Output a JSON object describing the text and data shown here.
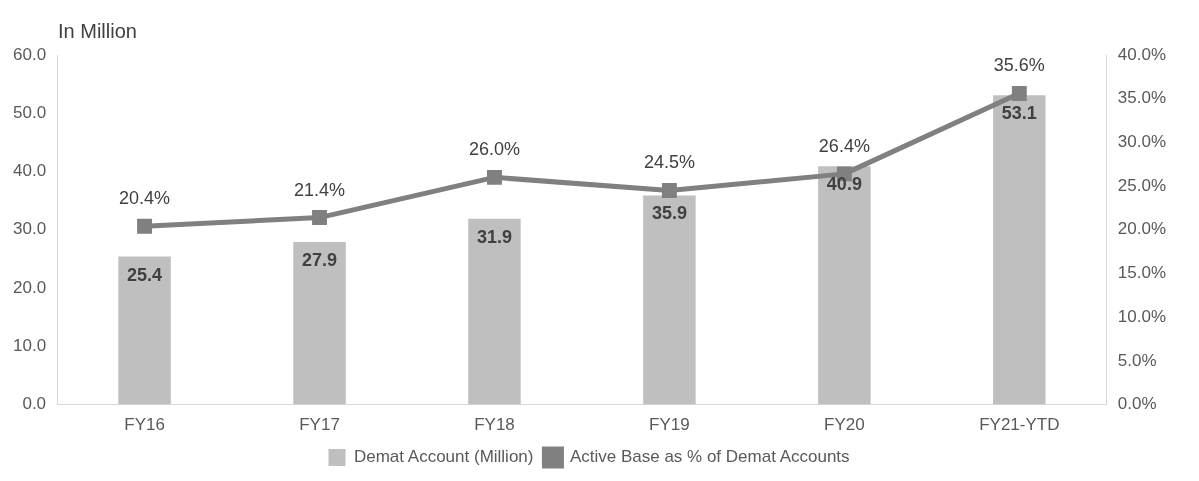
{
  "chart_data": {
    "type": "bar",
    "ylabel": "In Million",
    "categories": [
      "FY16",
      "FY17",
      "FY18",
      "FY19",
      "FY20",
      "FY21-YTD"
    ],
    "series": [
      {
        "name": "Demat Account (Million)",
        "color": "#bfbfbf",
        "values": [
          25.4,
          27.9,
          31.9,
          35.9,
          40.9,
          53.1
        ],
        "value_labels": [
          "25.4",
          "27.9",
          "31.9",
          "35.9",
          "40.9",
          "53.1"
        ]
      },
      {
        "name": "Active Base as % of Demat Accounts",
        "type": "line",
        "axis": "y2",
        "color": "#808080",
        "marker": "square",
        "values": [
          20.4,
          21.4,
          26.0,
          24.5,
          26.4,
          35.6
        ],
        "value_labels": [
          "20.4%",
          "21.4%",
          "26.0%",
          "24.5%",
          "26.4%",
          "35.6%"
        ]
      }
    ],
    "ylim": [
      0,
      60
    ],
    "yticks": [
      {
        "value": 0,
        "label": "0.0"
      },
      {
        "value": 10,
        "label": "10.0"
      },
      {
        "value": 20,
        "label": "20.0"
      },
      {
        "value": 30,
        "label": "30.0"
      },
      {
        "value": 40,
        "label": "40.0"
      },
      {
        "value": 50,
        "label": "50.0"
      },
      {
        "value": 60,
        "label": "60.0"
      }
    ],
    "y2lim": [
      0,
      40
    ],
    "y2ticks": [
      {
        "value": 0,
        "label": "0.0%"
      },
      {
        "value": 5,
        "label": "5.0%"
      },
      {
        "value": 10,
        "label": "10.0%"
      },
      {
        "value": 15,
        "label": "15.0%"
      },
      {
        "value": 20,
        "label": "20.0%"
      },
      {
        "value": 25,
        "label": "25.0%"
      },
      {
        "value": 30,
        "label": "30.0%"
      },
      {
        "value": 35,
        "label": "35.0%"
      },
      {
        "value": 40,
        "label": "40.0%"
      }
    ],
    "grid": false,
    "legend": "bottom"
  }
}
